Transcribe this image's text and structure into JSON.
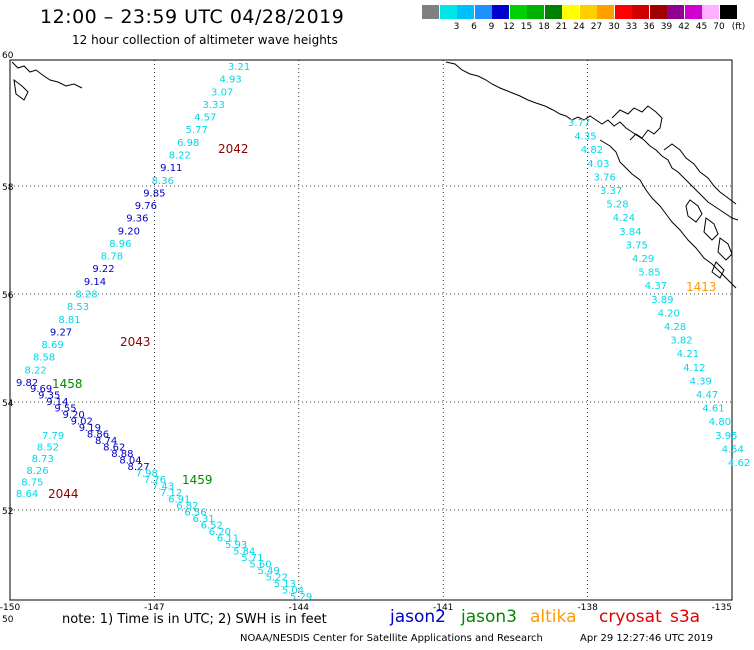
{
  "header": {
    "title": "12:00 – 23:59 UTC 04/28/2019",
    "subtitle": "12 hour collection of altimeter wave heights"
  },
  "legend": {
    "unit": "(ft)",
    "bins": [
      {
        "label": "",
        "color": "#808080"
      },
      {
        "label": "3",
        "color": "#00e6e6"
      },
      {
        "label": "6",
        "color": "#00bfff"
      },
      {
        "label": "9",
        "color": "#1e90ff"
      },
      {
        "label": "12",
        "color": "#0000d0"
      },
      {
        "label": "15",
        "color": "#00d000"
      },
      {
        "label": "18",
        "color": "#00b000"
      },
      {
        "label": "21",
        "color": "#008000"
      },
      {
        "label": "24",
        "color": "#ffff00"
      },
      {
        "label": "27",
        "color": "#ffd000"
      },
      {
        "label": "30",
        "color": "#ffa000"
      },
      {
        "label": "33",
        "color": "#ff0000"
      },
      {
        "label": "36",
        "color": "#d00000"
      },
      {
        "label": "39",
        "color": "#a00000"
      },
      {
        "label": "42",
        "color": "#900090"
      },
      {
        "label": "45",
        "color": "#d000d0"
      },
      {
        "label": "70",
        "color": "#ffb0ff"
      },
      {
        "label": "",
        "color": "#000000"
      }
    ]
  },
  "axes": {
    "lat_labels": [
      "60",
      "58",
      "56",
      "54",
      "52",
      "50"
    ],
    "lon_labels": [
      "-150",
      "-147",
      "-144",
      "-141",
      "-138",
      "-135"
    ],
    "lat_range": [
      50,
      60
    ],
    "lon_range": [
      -150,
      -135
    ]
  },
  "colors": {
    "cyan": "#00d8e8",
    "blue": "#0000c8",
    "green": "#008800",
    "maroon": "#8b0000",
    "orange": "#ff9900"
  },
  "track_upper": [
    "3.21",
    "4.93",
    "3.07",
    "3.33",
    "4.57",
    "5.77",
    "6.98",
    "8.22",
    "9.11",
    "8.36",
    "9.85",
    "9.76",
    "9.36",
    "9.20",
    "8.96",
    "8.78",
    "9.22",
    "9.14",
    "8.28",
    "8.53",
    "8.81",
    "9.27",
    "8.69",
    "8.58",
    "8.22",
    "9.82"
  ],
  "track_lower": [
    "7.79",
    "8.52",
    "8.73",
    "8.26",
    "8.75",
    "8.64"
  ],
  "track_east": [
    "3.77",
    "4.35",
    "4.82",
    "4.03",
    "3.76",
    "3.37",
    "5.28",
    "4.24",
    "3.84",
    "3.75",
    "4.29",
    "5.85",
    "4.37",
    "3.89",
    "4.20",
    "4.28",
    "3.82",
    "4.21",
    "4.12",
    "4.39",
    "4.47",
    "4.61",
    "4.80",
    "3.95",
    "4.54",
    "4.62"
  ],
  "track_diag": [
    "9.69",
    "9.35",
    "9.14",
    "9.55",
    "9.20",
    "9.02",
    "9.19",
    "8.86",
    "8.74",
    "8.62",
    "8.88",
    "8.04",
    "8.27",
    "7.98",
    "7.76",
    "7.43",
    "7.12",
    "6.91",
    "6.82",
    "6.56",
    "6.31",
    "6.52",
    "6.20",
    "6.11",
    "5.93",
    "5.84",
    "5.71",
    "5.60",
    "5.49",
    "5.22",
    "5.13",
    "5.04",
    "5.29"
  ],
  "time_labels": [
    {
      "text": "2042",
      "color": "maroon"
    },
    {
      "text": "2043",
      "color": "maroon"
    },
    {
      "text": "2044",
      "color": "maroon"
    },
    {
      "text": "1413",
      "color": "orange"
    },
    {
      "text": "1458",
      "color": "green"
    },
    {
      "text": "1459",
      "color": "green"
    }
  ],
  "footer": {
    "note": "note:  1) Time is in UTC;  2) SWH is in feet",
    "satellites": [
      {
        "name": "jason2",
        "color": "#0000c8"
      },
      {
        "name": "jason3",
        "color": "#008800"
      },
      {
        "name": "altika",
        "color": "#ff9900"
      },
      {
        "name": "cryosat",
        "color": "#e00000"
      },
      {
        "name": "s3a",
        "color": "#e00000"
      }
    ],
    "credit": "NOAA/NESDIS Center for Satellite Applications and Research",
    "timestamp": "Apr 29 12:27:46 UTC 2019"
  }
}
